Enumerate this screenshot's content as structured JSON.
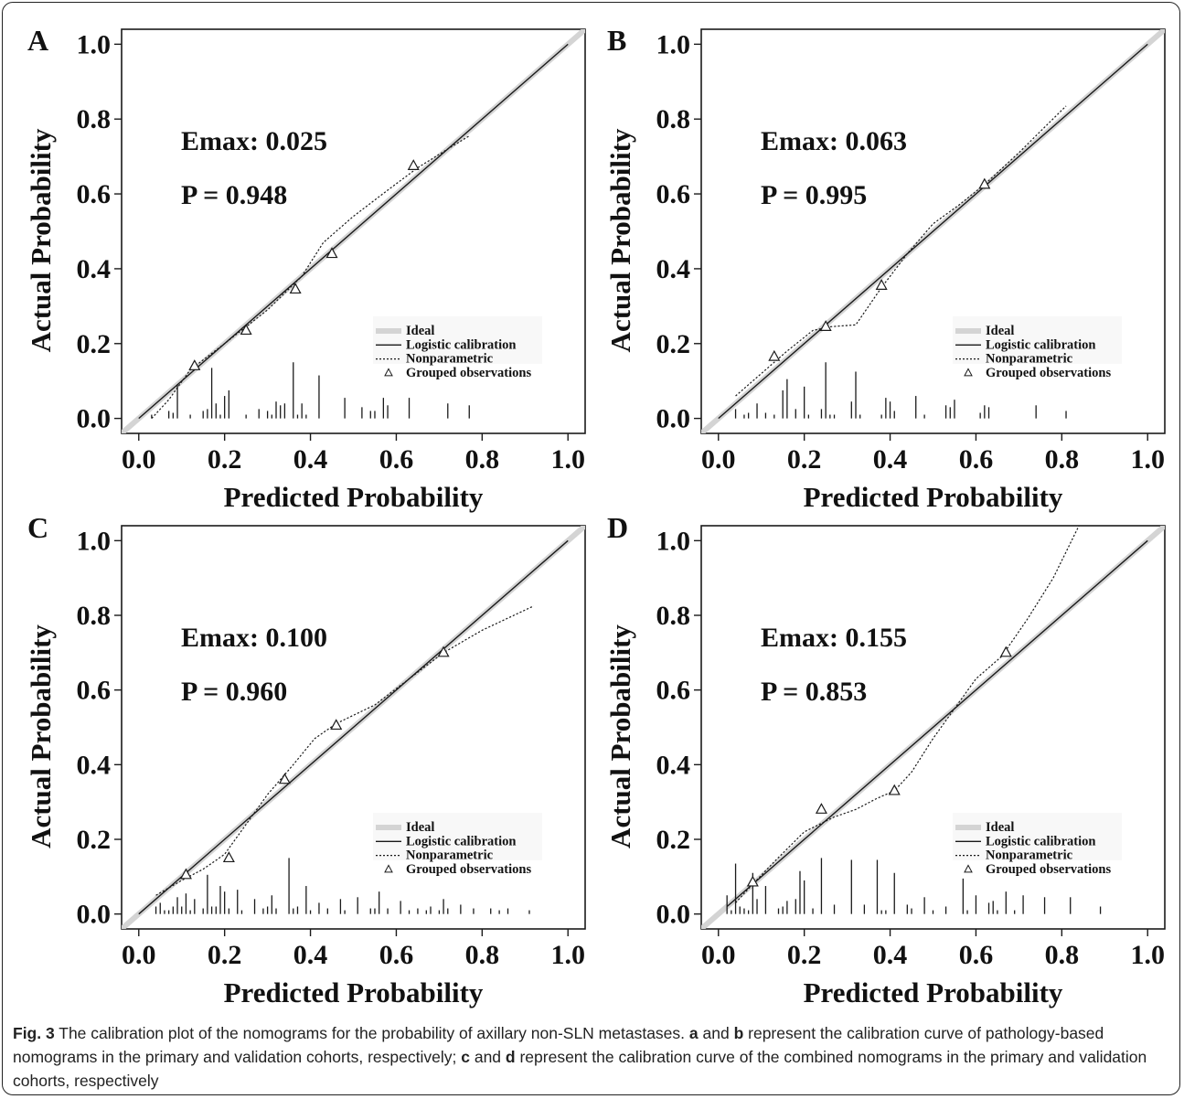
{
  "chart_data": [
    {
      "type": "line",
      "panel_label": "A",
      "xlabel": "Predicted Probability",
      "ylabel": "Actual Probability",
      "xlim": [
        -0.04,
        1.04
      ],
      "ylim": [
        -0.04,
        1.04
      ],
      "xticks": [
        "0.0",
        "0.2",
        "0.4",
        "0.6",
        "0.8",
        "1.0"
      ],
      "yticks": [
        "0.0",
        "0.2",
        "0.4",
        "0.6",
        "0.8",
        "1.0"
      ],
      "emax_text": "Emax: 0.025",
      "p_text": "P = 0.948",
      "legend": [
        "Ideal",
        "Logistic calibration",
        "Nonparametric",
        "Grouped observations"
      ],
      "legend_position": "bottom-right",
      "logistic": [
        [
          0.0,
          0.0
        ],
        [
          1.0,
          1.0
        ]
      ],
      "nonparametric": [
        [
          0.03,
          0.0
        ],
        [
          0.07,
          0.05
        ],
        [
          0.12,
          0.13
        ],
        [
          0.2,
          0.2
        ],
        [
          0.3,
          0.29
        ],
        [
          0.38,
          0.38
        ],
        [
          0.43,
          0.47
        ],
        [
          0.5,
          0.54
        ],
        [
          0.58,
          0.61
        ],
        [
          0.65,
          0.67
        ],
        [
          0.72,
          0.72
        ],
        [
          0.77,
          0.755
        ]
      ],
      "grouped_observations": [
        [
          0.13,
          0.14
        ],
        [
          0.25,
          0.235
        ],
        [
          0.365,
          0.345
        ],
        [
          0.45,
          0.44
        ],
        [
          0.64,
          0.675
        ]
      ],
      "rug": [
        [
          0.03,
          0.01
        ],
        [
          0.07,
          0.02
        ],
        [
          0.08,
          0.015
        ],
        [
          0.09,
          0.09
        ],
        [
          0.12,
          0.01
        ],
        [
          0.15,
          0.02
        ],
        [
          0.16,
          0.025
        ],
        [
          0.17,
          0.135
        ],
        [
          0.18,
          0.04
        ],
        [
          0.19,
          0.01
        ],
        [
          0.2,
          0.06
        ],
        [
          0.21,
          0.075
        ],
        [
          0.25,
          0.01
        ],
        [
          0.28,
          0.025
        ],
        [
          0.3,
          0.02
        ],
        [
          0.31,
          0.01
        ],
        [
          0.32,
          0.045
        ],
        [
          0.33,
          0.035
        ],
        [
          0.34,
          0.04
        ],
        [
          0.36,
          0.15
        ],
        [
          0.37,
          0.01
        ],
        [
          0.38,
          0.04
        ],
        [
          0.39,
          0.01
        ],
        [
          0.42,
          0.115
        ],
        [
          0.48,
          0.055
        ],
        [
          0.52,
          0.03
        ],
        [
          0.54,
          0.02
        ],
        [
          0.55,
          0.02
        ],
        [
          0.57,
          0.055
        ],
        [
          0.58,
          0.035
        ],
        [
          0.63,
          0.055
        ],
        [
          0.72,
          0.04
        ],
        [
          0.77,
          0.035
        ]
      ]
    },
    {
      "type": "line",
      "panel_label": "B",
      "xlabel": "Predicted Probability",
      "ylabel": "Actual Probability",
      "xlim": [
        -0.04,
        1.04
      ],
      "ylim": [
        -0.04,
        1.04
      ],
      "xticks": [
        "0.0",
        "0.2",
        "0.4",
        "0.6",
        "0.8",
        "1.0"
      ],
      "yticks": [
        "0.0",
        "0.2",
        "0.4",
        "0.6",
        "0.8",
        "1.0"
      ],
      "emax_text": "Emax: 0.063",
      "p_text": "P = 0.995",
      "legend": [
        "Ideal",
        "Logistic calibration",
        "Nonparametric",
        "Grouped observations"
      ],
      "legend_position": "bottom-right",
      "logistic": [
        [
          0.0,
          0.0
        ],
        [
          1.0,
          1.0
        ]
      ],
      "nonparametric": [
        [
          0.04,
          0.06
        ],
        [
          0.1,
          0.12
        ],
        [
          0.16,
          0.18
        ],
        [
          0.22,
          0.235
        ],
        [
          0.26,
          0.245
        ],
        [
          0.32,
          0.25
        ],
        [
          0.38,
          0.35
        ],
        [
          0.44,
          0.44
        ],
        [
          0.5,
          0.52
        ],
        [
          0.56,
          0.57
        ],
        [
          0.62,
          0.625
        ],
        [
          0.7,
          0.71
        ],
        [
          0.81,
          0.835
        ]
      ],
      "grouped_observations": [
        [
          0.13,
          0.165
        ],
        [
          0.25,
          0.245
        ],
        [
          0.38,
          0.355
        ],
        [
          0.62,
          0.625
        ]
      ],
      "rug": [
        [
          0.04,
          0.025
        ],
        [
          0.06,
          0.01
        ],
        [
          0.07,
          0.015
        ],
        [
          0.09,
          0.04
        ],
        [
          0.11,
          0.015
        ],
        [
          0.13,
          0.01
        ],
        [
          0.15,
          0.075
        ],
        [
          0.16,
          0.105
        ],
        [
          0.18,
          0.025
        ],
        [
          0.2,
          0.085
        ],
        [
          0.21,
          0.01
        ],
        [
          0.24,
          0.025
        ],
        [
          0.25,
          0.15
        ],
        [
          0.26,
          0.01
        ],
        [
          0.27,
          0.01
        ],
        [
          0.31,
          0.045
        ],
        [
          0.32,
          0.125
        ],
        [
          0.33,
          0.01
        ],
        [
          0.38,
          0.01
        ],
        [
          0.39,
          0.055
        ],
        [
          0.4,
          0.045
        ],
        [
          0.41,
          0.02
        ],
        [
          0.46,
          0.06
        ],
        [
          0.48,
          0.01
        ],
        [
          0.53,
          0.035
        ],
        [
          0.54,
          0.03
        ],
        [
          0.55,
          0.05
        ],
        [
          0.61,
          0.015
        ],
        [
          0.62,
          0.035
        ],
        [
          0.63,
          0.03
        ],
        [
          0.74,
          0.035
        ],
        [
          0.81,
          0.02
        ]
      ]
    },
    {
      "type": "line",
      "panel_label": "C",
      "xlabel": "Predicted Probability",
      "ylabel": "Actual Probability",
      "xlim": [
        -0.04,
        1.04
      ],
      "ylim": [
        -0.04,
        1.04
      ],
      "xticks": [
        "0.0",
        "0.2",
        "0.4",
        "0.6",
        "0.8",
        "1.0"
      ],
      "yticks": [
        "0.0",
        "0.2",
        "0.4",
        "0.6",
        "0.8",
        "1.0"
      ],
      "emax_text": "Emax: 0.100",
      "p_text": "P = 0.960",
      "legend": [
        "Ideal",
        "Logistic calibration",
        "Nonparametric",
        "Grouped observations"
      ],
      "legend_position": "bottom-right",
      "logistic": [
        [
          0.0,
          0.0
        ],
        [
          1.0,
          1.0
        ]
      ],
      "nonparametric": [
        [
          0.04,
          0.05
        ],
        [
          0.1,
          0.09
        ],
        [
          0.15,
          0.12
        ],
        [
          0.2,
          0.16
        ],
        [
          0.25,
          0.24
        ],
        [
          0.3,
          0.32
        ],
        [
          0.36,
          0.4
        ],
        [
          0.41,
          0.47
        ],
        [
          0.46,
          0.51
        ],
        [
          0.55,
          0.56
        ],
        [
          0.63,
          0.63
        ],
        [
          0.71,
          0.7
        ],
        [
          0.8,
          0.76
        ],
        [
          0.92,
          0.825
        ]
      ],
      "grouped_observations": [
        [
          0.11,
          0.105
        ],
        [
          0.21,
          0.15
        ],
        [
          0.34,
          0.36
        ],
        [
          0.46,
          0.505
        ],
        [
          0.71,
          0.7
        ]
      ],
      "rug": [
        [
          0.04,
          0.02
        ],
        [
          0.05,
          0.03
        ],
        [
          0.06,
          0.01
        ],
        [
          0.07,
          0.01
        ],
        [
          0.08,
          0.02
        ],
        [
          0.09,
          0.045
        ],
        [
          0.1,
          0.02
        ],
        [
          0.11,
          0.055
        ],
        [
          0.12,
          0.01
        ],
        [
          0.13,
          0.04
        ],
        [
          0.15,
          0.015
        ],
        [
          0.16,
          0.105
        ],
        [
          0.17,
          0.02
        ],
        [
          0.18,
          0.02
        ],
        [
          0.19,
          0.075
        ],
        [
          0.2,
          0.06
        ],
        [
          0.21,
          0.015
        ],
        [
          0.23,
          0.065
        ],
        [
          0.24,
          0.01
        ],
        [
          0.27,
          0.04
        ],
        [
          0.29,
          0.015
        ],
        [
          0.3,
          0.02
        ],
        [
          0.31,
          0.05
        ],
        [
          0.32,
          0.015
        ],
        [
          0.35,
          0.15
        ],
        [
          0.36,
          0.015
        ],
        [
          0.37,
          0.02
        ],
        [
          0.39,
          0.075
        ],
        [
          0.4,
          0.01
        ],
        [
          0.42,
          0.03
        ],
        [
          0.44,
          0.015
        ],
        [
          0.47,
          0.04
        ],
        [
          0.48,
          0.01
        ],
        [
          0.51,
          0.045
        ],
        [
          0.54,
          0.015
        ],
        [
          0.55,
          0.015
        ],
        [
          0.56,
          0.06
        ],
        [
          0.58,
          0.015
        ],
        [
          0.61,
          0.035
        ],
        [
          0.63,
          0.01
        ],
        [
          0.65,
          0.015
        ],
        [
          0.67,
          0.01
        ],
        [
          0.68,
          0.02
        ],
        [
          0.7,
          0.01
        ],
        [
          0.71,
          0.04
        ],
        [
          0.72,
          0.015
        ],
        [
          0.75,
          0.025
        ],
        [
          0.78,
          0.015
        ],
        [
          0.82,
          0.015
        ],
        [
          0.84,
          0.01
        ],
        [
          0.86,
          0.015
        ],
        [
          0.91,
          0.01
        ]
      ]
    },
    {
      "type": "line",
      "panel_label": "D",
      "xlabel": "Predicted Probability",
      "ylabel": "Actual Probability",
      "xlim": [
        -0.04,
        1.04
      ],
      "ylim": [
        -0.04,
        1.04
      ],
      "xticks": [
        "0.0",
        "0.2",
        "0.4",
        "0.6",
        "0.8",
        "1.0"
      ],
      "yticks": [
        "0.0",
        "0.2",
        "0.4",
        "0.6",
        "0.8",
        "1.0"
      ],
      "emax_text": "Emax: 0.155",
      "p_text": "P = 0.853",
      "legend": [
        "Ideal",
        "Logistic calibration",
        "Nonparametric",
        "Grouped observations"
      ],
      "legend_position": "bottom-right",
      "logistic": [
        [
          0.02,
          0.02
        ],
        [
          1.0,
          1.0
        ]
      ],
      "nonparametric": [
        [
          0.04,
          0.03
        ],
        [
          0.08,
          0.08
        ],
        [
          0.13,
          0.14
        ],
        [
          0.2,
          0.22
        ],
        [
          0.27,
          0.26
        ],
        [
          0.32,
          0.28
        ],
        [
          0.37,
          0.31
        ],
        [
          0.41,
          0.33
        ],
        [
          0.45,
          0.38
        ],
        [
          0.5,
          0.47
        ],
        [
          0.55,
          0.55
        ],
        [
          0.6,
          0.63
        ],
        [
          0.66,
          0.69
        ],
        [
          0.72,
          0.79
        ],
        [
          0.78,
          0.9
        ],
        [
          0.84,
          1.04
        ]
      ],
      "grouped_observations": [
        [
          0.08,
          0.085
        ],
        [
          0.24,
          0.28
        ],
        [
          0.41,
          0.33
        ],
        [
          0.67,
          0.7
        ]
      ],
      "rug": [
        [
          0.02,
          0.05
        ],
        [
          0.03,
          0.01
        ],
        [
          0.04,
          0.135
        ],
        [
          0.05,
          0.02
        ],
        [
          0.06,
          0.015
        ],
        [
          0.07,
          0.01
        ],
        [
          0.08,
          0.11
        ],
        [
          0.09,
          0.04
        ],
        [
          0.11,
          0.075
        ],
        [
          0.14,
          0.015
        ],
        [
          0.15,
          0.02
        ],
        [
          0.16,
          0.035
        ],
        [
          0.18,
          0.04
        ],
        [
          0.19,
          0.115
        ],
        [
          0.2,
          0.09
        ],
        [
          0.22,
          0.015
        ],
        [
          0.24,
          0.15
        ],
        [
          0.27,
          0.025
        ],
        [
          0.31,
          0.145
        ],
        [
          0.34,
          0.025
        ],
        [
          0.37,
          0.145
        ],
        [
          0.38,
          0.01
        ],
        [
          0.39,
          0.01
        ],
        [
          0.41,
          0.11
        ],
        [
          0.44,
          0.025
        ],
        [
          0.45,
          0.015
        ],
        [
          0.48,
          0.045
        ],
        [
          0.5,
          0.01
        ],
        [
          0.53,
          0.02
        ],
        [
          0.57,
          0.095
        ],
        [
          0.58,
          0.01
        ],
        [
          0.6,
          0.05
        ],
        [
          0.63,
          0.03
        ],
        [
          0.64,
          0.035
        ],
        [
          0.65,
          0.01
        ],
        [
          0.67,
          0.06
        ],
        [
          0.69,
          0.01
        ],
        [
          0.71,
          0.05
        ],
        [
          0.76,
          0.045
        ],
        [
          0.82,
          0.045
        ],
        [
          0.89,
          0.02
        ]
      ]
    }
  ],
  "caption": {
    "fig_label": "Fig. 3",
    "part1": " The calibration plot of the nomograms for the probability of axillary non-SLN metastases. ",
    "a": "a",
    "part2": " and ",
    "b": "b",
    "part3": " represent the calibration curve of pathology-based nomograms in the primary and validation cohorts, respectively; ",
    "c": "c",
    "part4": " and ",
    "d": "d",
    "part5": " represent the calibration curve of the combined nomograms in the primary and validation cohorts, respectively"
  },
  "colors": {
    "ideal": "#d4d4d4",
    "line": "#1a1a1a",
    "text": "#111111"
  }
}
